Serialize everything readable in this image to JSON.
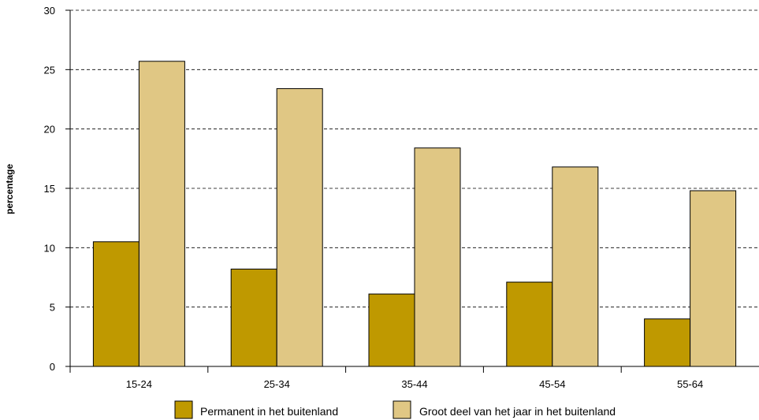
{
  "chart_data": {
    "type": "bar",
    "categories": [
      "15-24",
      "25-34",
      "35-44",
      "45-54",
      "55-64"
    ],
    "series": [
      {
        "name": "Permanent in het buitenland",
        "values": [
          10.5,
          8.2,
          6.1,
          7.1,
          4.0
        ],
        "color": "#BF9900"
      },
      {
        "name": "Groot deel van het jaar in het buitenland",
        "values": [
          25.7,
          23.4,
          18.4,
          16.8,
          14.8
        ],
        "color": "#E0C784"
      }
    ],
    "title": "",
    "xlabel": "",
    "ylabel": "percentage",
    "ylim": [
      0,
      30
    ],
    "yticks": [
      0,
      5,
      10,
      15,
      20,
      25,
      30
    ],
    "grid": "horizontal-dashed",
    "legend_position": "bottom"
  }
}
